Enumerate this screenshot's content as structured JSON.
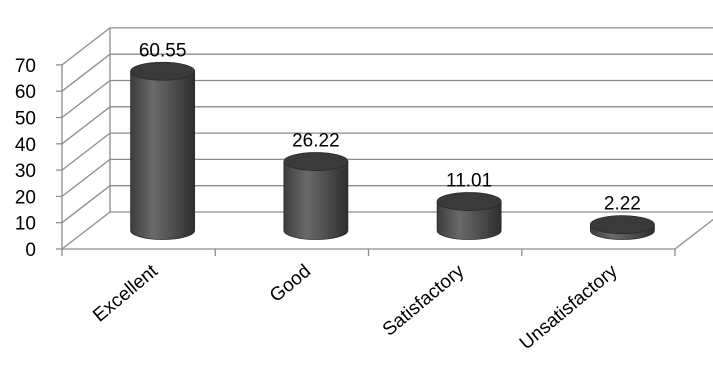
{
  "chart_data": {
    "type": "bar",
    "style": "3d-cylinder",
    "categories": [
      "Excellent",
      "Good",
      "Satisfactory",
      "Unsatisfactory"
    ],
    "values": [
      60.55,
      26.22,
      11.01,
      2.22
    ],
    "data_labels": [
      "60.55",
      "26.22",
      "11.01",
      "2.22"
    ],
    "title": "",
    "xlabel": "",
    "ylabel": "",
    "ylim": [
      0,
      70
    ],
    "yticks": [
      0,
      10,
      20,
      30,
      40,
      50,
      60,
      70
    ],
    "grid": true,
    "legend": "none",
    "colors": {
      "bar_body": "#505050",
      "bar_top": "#3a3a3a",
      "grid": "#8c8c8c"
    }
  }
}
